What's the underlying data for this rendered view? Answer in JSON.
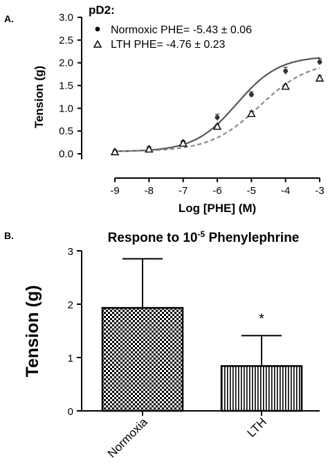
{
  "chart_data": [
    {
      "panel_label": "A.",
      "type": "scatter",
      "xlabel": "Log [PHE] (M)",
      "ylabel": "Tension (g)",
      "xlim": [
        -9,
        -3
      ],
      "ylim": [
        0,
        3
      ],
      "xticks": [
        "-9",
        "-8",
        "-7",
        "-6",
        "-5",
        "-4",
        "-3"
      ],
      "yticks": [
        "0.0",
        "0.5",
        "1.0",
        "1.5",
        "2.0",
        "2.5",
        "3.0"
      ],
      "legend_title": "pD2:",
      "legend_position": "top-left",
      "series": [
        {
          "name": "Normoxic PHE= -5.43 ± 0.06",
          "marker": "filled-circle",
          "line": "solid",
          "color": "#555555",
          "x": [
            -9,
            -8,
            -7,
            -6,
            -5,
            -4,
            -3
          ],
          "y": [
            0.06,
            0.13,
            0.26,
            0.8,
            1.3,
            1.82,
            2.02
          ],
          "error": [
            0.02,
            0.02,
            0.03,
            0.07,
            0.06,
            0.08,
            0.07
          ],
          "fit": {
            "bottom": 0.05,
            "top": 2.15,
            "logEC50": -5.43,
            "hill": 0.7
          }
        },
        {
          "name": "LTH PHE= -4.76 ± 0.23",
          "marker": "open-triangle",
          "line": "dashed",
          "color": "#888888",
          "x": [
            -9,
            -8,
            -7,
            -6,
            -5,
            -4,
            -3
          ],
          "y": [
            0.04,
            0.1,
            0.23,
            0.6,
            0.88,
            1.48,
            1.66
          ],
          "error": [
            0.02,
            0.02,
            0.03,
            0.05,
            0.06,
            0.05,
            0.06
          ],
          "fit": {
            "bottom": 0.05,
            "top": 2.05,
            "logEC50": -4.76,
            "hill": 0.6
          }
        }
      ]
    },
    {
      "panel_label": "B.",
      "type": "bar",
      "title_main": "Respone to 10",
      "title_sup": "-5",
      "title_rest": " Phenylephrine",
      "ylabel": "Tension (g)",
      "ylim": [
        0,
        3
      ],
      "yticks": [
        "0",
        "1",
        "2",
        "3"
      ],
      "categories": [
        "Normoxia",
        "LTH"
      ],
      "values": [
        1.93,
        0.84
      ],
      "error": [
        0.92,
        0.57
      ],
      "patterns": [
        "checkerboard",
        "vertical-stripes"
      ],
      "annotations": [
        "",
        "*"
      ]
    }
  ]
}
